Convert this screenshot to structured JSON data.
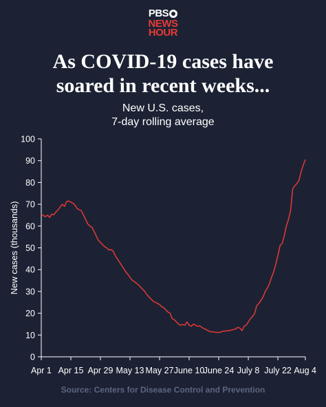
{
  "logo": {
    "line1": "PBS",
    "line2": "NEWS",
    "line3": "HOUR"
  },
  "title_line1": "As COVID-19 cases have",
  "title_line2": "soared in recent weeks...",
  "subtitle_line1": "New U.S. cases,",
  "subtitle_line2": "7-day rolling average",
  "source": "Source: Centers for Disease Control and Prevention",
  "colors": {
    "background": "#1c2234",
    "line": "#e63a36",
    "axis": "#ffffff",
    "source": "#5d667f"
  },
  "chart_data": {
    "type": "line",
    "title": "New U.S. cases, 7-day rolling average",
    "xlabel": "",
    "ylabel": "New cases (thousands)",
    "ylim": [
      0,
      100
    ],
    "yticks": [
      0,
      10,
      20,
      30,
      40,
      50,
      60,
      70,
      80,
      90,
      100
    ],
    "xlim": [
      "2021-04-01",
      "2021-08-04"
    ],
    "xticks": [
      {
        "date": "2021-04-01",
        "label": "Apr 1"
      },
      {
        "date": "2021-04-15",
        "label": "Apr 15"
      },
      {
        "date": "2021-04-29",
        "label": "Apr 29"
      },
      {
        "date": "2021-05-13",
        "label": "May 13"
      },
      {
        "date": "2021-05-27",
        "label": "May 27"
      },
      {
        "date": "2021-06-10",
        "label": "June 10"
      },
      {
        "date": "2021-06-24",
        "label": "June 24"
      },
      {
        "date": "2021-07-08",
        "label": "July 8"
      },
      {
        "date": "2021-07-22",
        "label": "July 22"
      },
      {
        "date": "2021-08-04",
        "label": "Aug 4"
      }
    ],
    "grid": false,
    "series": [
      {
        "points": [
          [
            "2021-04-01",
            65.5
          ],
          [
            "2021-04-02",
            64.8
          ],
          [
            "2021-04-03",
            64.3
          ],
          [
            "2021-04-04",
            65.0
          ],
          [
            "2021-04-05",
            64.0
          ],
          [
            "2021-04-06",
            65.5
          ],
          [
            "2021-04-07",
            65.2
          ],
          [
            "2021-04-08",
            66.5
          ],
          [
            "2021-04-09",
            67.5
          ],
          [
            "2021-04-10",
            68.8
          ],
          [
            "2021-04-11",
            70.0
          ],
          [
            "2021-04-12",
            69.0
          ],
          [
            "2021-04-13",
            71.2
          ],
          [
            "2021-04-14",
            71.5
          ],
          [
            "2021-04-15",
            71.0
          ],
          [
            "2021-04-16",
            70.5
          ],
          [
            "2021-04-17",
            69.5
          ],
          [
            "2021-04-18",
            68.0
          ],
          [
            "2021-04-19",
            67.5
          ],
          [
            "2021-04-20",
            67.0
          ],
          [
            "2021-04-21",
            65.0
          ],
          [
            "2021-04-22",
            63.0
          ],
          [
            "2021-04-23",
            61.0
          ],
          [
            "2021-04-24",
            60.0
          ],
          [
            "2021-04-25",
            59.5
          ],
          [
            "2021-04-26",
            57.5
          ],
          [
            "2021-04-27",
            55.5
          ],
          [
            "2021-04-28",
            53.5
          ],
          [
            "2021-04-29",
            52.5
          ],
          [
            "2021-04-30",
            51.5
          ],
          [
            "2021-05-01",
            50.5
          ],
          [
            "2021-05-02",
            50.0
          ],
          [
            "2021-05-03",
            49.0
          ],
          [
            "2021-05-04",
            49.2
          ],
          [
            "2021-05-05",
            48.5
          ],
          [
            "2021-05-06",
            46.5
          ],
          [
            "2021-05-07",
            45.0
          ],
          [
            "2021-05-08",
            43.5
          ],
          [
            "2021-05-09",
            42.0
          ],
          [
            "2021-05-10",
            40.5
          ],
          [
            "2021-05-11",
            39.0
          ],
          [
            "2021-05-12",
            37.8
          ],
          [
            "2021-05-13",
            36.5
          ],
          [
            "2021-05-14",
            35.2
          ],
          [
            "2021-05-15",
            34.5
          ],
          [
            "2021-05-16",
            33.8
          ],
          [
            "2021-05-17",
            33.0
          ],
          [
            "2021-05-18",
            32.0
          ],
          [
            "2021-05-19",
            31.0
          ],
          [
            "2021-05-20",
            30.0
          ],
          [
            "2021-05-21",
            28.5
          ],
          [
            "2021-05-22",
            27.5
          ],
          [
            "2021-05-23",
            26.5
          ],
          [
            "2021-05-24",
            25.5
          ],
          [
            "2021-05-25",
            25.0
          ],
          [
            "2021-05-26",
            24.5
          ],
          [
            "2021-05-27",
            24.0
          ],
          [
            "2021-05-28",
            23.0
          ],
          [
            "2021-05-29",
            22.5
          ],
          [
            "2021-05-30",
            21.5
          ],
          [
            "2021-05-31",
            20.5
          ],
          [
            "2021-06-01",
            20.0
          ],
          [
            "2021-06-02",
            17.5
          ],
          [
            "2021-06-03",
            17.0
          ],
          [
            "2021-06-04",
            16.0
          ],
          [
            "2021-06-05",
            15.0
          ],
          [
            "2021-06-06",
            14.5
          ],
          [
            "2021-06-07",
            14.8
          ],
          [
            "2021-06-08",
            14.5
          ],
          [
            "2021-06-09",
            16.0
          ],
          [
            "2021-06-10",
            14.5
          ],
          [
            "2021-06-11",
            14.0
          ],
          [
            "2021-06-12",
            15.0
          ],
          [
            "2021-06-13",
            14.5
          ],
          [
            "2021-06-14",
            14.0
          ],
          [
            "2021-06-15",
            14.2
          ],
          [
            "2021-06-16",
            13.5
          ],
          [
            "2021-06-17",
            13.0
          ],
          [
            "2021-06-18",
            12.5
          ],
          [
            "2021-06-19",
            12.0
          ],
          [
            "2021-06-20",
            11.5
          ],
          [
            "2021-06-21",
            11.5
          ],
          [
            "2021-06-22",
            11.3
          ],
          [
            "2021-06-23",
            11.2
          ],
          [
            "2021-06-24",
            11.2
          ],
          [
            "2021-06-25",
            11.3
          ],
          [
            "2021-06-26",
            11.8
          ],
          [
            "2021-06-27",
            11.8
          ],
          [
            "2021-06-28",
            12.0
          ],
          [
            "2021-06-29",
            12.0
          ],
          [
            "2021-06-30",
            12.3
          ],
          [
            "2021-07-01",
            12.5
          ],
          [
            "2021-07-02",
            12.8
          ],
          [
            "2021-07-03",
            13.5
          ],
          [
            "2021-07-04",
            13.2
          ],
          [
            "2021-07-05",
            12.0
          ],
          [
            "2021-07-06",
            14.0
          ],
          [
            "2021-07-07",
            14.5
          ],
          [
            "2021-07-08",
            16.0
          ],
          [
            "2021-07-09",
            17.5
          ],
          [
            "2021-07-10",
            18.5
          ],
          [
            "2021-07-11",
            20.0
          ],
          [
            "2021-07-12",
            23.5
          ],
          [
            "2021-07-13",
            24.5
          ],
          [
            "2021-07-14",
            26.0
          ],
          [
            "2021-07-15",
            27.5
          ],
          [
            "2021-07-16",
            30.0
          ],
          [
            "2021-07-17",
            31.5
          ],
          [
            "2021-07-18",
            33.5
          ],
          [
            "2021-07-19",
            36.5
          ],
          [
            "2021-07-20",
            39.0
          ],
          [
            "2021-07-21",
            42.5
          ],
          [
            "2021-07-22",
            46.5
          ],
          [
            "2021-07-23",
            51.0
          ],
          [
            "2021-07-24",
            52.0
          ],
          [
            "2021-07-25",
            55.5
          ],
          [
            "2021-07-26",
            60.0
          ],
          [
            "2021-07-27",
            63.0
          ],
          [
            "2021-07-28",
            67.0
          ],
          [
            "2021-07-29",
            77.0
          ],
          [
            "2021-07-30",
            78.5
          ],
          [
            "2021-07-31",
            79.5
          ],
          [
            "2021-08-01",
            81.0
          ],
          [
            "2021-08-02",
            85.0
          ],
          [
            "2021-08-03",
            88.0
          ],
          [
            "2021-08-04",
            90.5
          ]
        ]
      }
    ]
  }
}
